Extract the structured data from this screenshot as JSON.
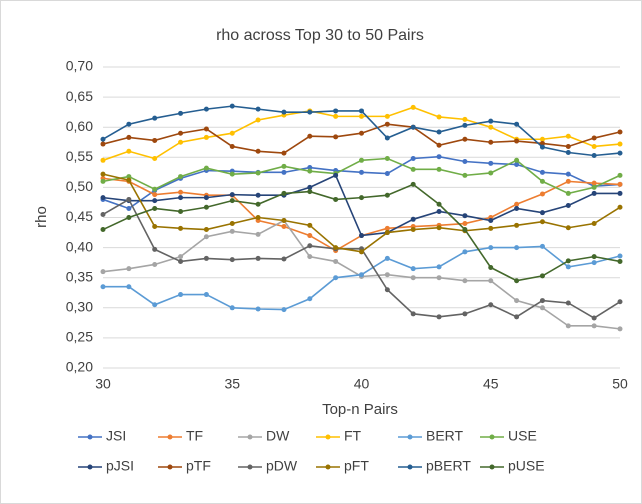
{
  "chart_data": {
    "type": "line",
    "title": "rho across Top 30 to 50 Pairs",
    "x_label": "Top-n Pairs",
    "y_label": "rho",
    "x": [
      30,
      31,
      32,
      33,
      34,
      35,
      36,
      37,
      38,
      39,
      40,
      41,
      42,
      43,
      44,
      45,
      46,
      47,
      48,
      49,
      50
    ],
    "xlim": [
      30,
      50
    ],
    "xticks": [
      30,
      35,
      40,
      45,
      50
    ],
    "ylim": [
      0.2,
      0.7
    ],
    "yticks": [
      {
        "value": 0.2,
        "label": "0,20"
      },
      {
        "value": 0.25,
        "label": "0,25"
      },
      {
        "value": 0.3,
        "label": "0,30"
      },
      {
        "value": 0.35,
        "label": "0,35"
      },
      {
        "value": 0.4,
        "label": "0,40"
      },
      {
        "value": 0.45,
        "label": "0,45"
      },
      {
        "value": 0.5,
        "label": "0,50"
      },
      {
        "value": 0.55,
        "label": "0,55"
      },
      {
        "value": 0.6,
        "label": "0,60"
      },
      {
        "value": 0.65,
        "label": "0,65"
      },
      {
        "value": 0.7,
        "label": "0,70"
      }
    ],
    "grid": true,
    "legend": "bottom",
    "series": [
      {
        "name": "JSI",
        "color": "#4472c4",
        "values": [
          0.48,
          0.465,
          0.495,
          0.515,
          0.528,
          0.527,
          0.525,
          0.525,
          0.533,
          0.528,
          0.525,
          0.523,
          0.548,
          0.551,
          0.543,
          0.54,
          0.538,
          0.525,
          0.522,
          0.502,
          0.505
        ]
      },
      {
        "name": "TF",
        "color": "#ed7d31",
        "values": [
          0.515,
          0.51,
          0.488,
          0.492,
          0.487,
          0.487,
          0.445,
          0.435,
          0.42,
          0.395,
          0.42,
          0.432,
          0.435,
          0.437,
          0.44,
          0.45,
          0.472,
          0.489,
          0.51,
          0.507,
          0.505
        ]
      },
      {
        "name": "DW",
        "color": "#a5a5a5",
        "values": [
          0.36,
          0.365,
          0.372,
          0.385,
          0.418,
          0.427,
          0.422,
          0.445,
          0.385,
          0.377,
          0.352,
          0.355,
          0.35,
          0.35,
          0.345,
          0.345,
          0.312,
          0.3,
          0.27,
          0.27,
          0.265
        ]
      },
      {
        "name": "FT",
        "color": "#ffc000",
        "values": [
          0.545,
          0.56,
          0.548,
          0.575,
          0.583,
          0.59,
          0.612,
          0.62,
          0.627,
          0.618,
          0.618,
          0.618,
          0.633,
          0.617,
          0.613,
          0.6,
          0.58,
          0.58,
          0.585,
          0.568,
          0.572
        ]
      },
      {
        "name": "BERT",
        "color": "#5b9bd5",
        "values": [
          0.335,
          0.335,
          0.305,
          0.322,
          0.322,
          0.3,
          0.298,
          0.297,
          0.315,
          0.35,
          0.355,
          0.382,
          0.365,
          0.368,
          0.393,
          0.4,
          0.4,
          0.402,
          0.368,
          0.375,
          0.386
        ]
      },
      {
        "name": "USE",
        "color": "#70ad47",
        "values": [
          0.51,
          0.518,
          0.497,
          0.518,
          0.532,
          0.522,
          0.524,
          0.535,
          0.527,
          0.523,
          0.545,
          0.548,
          0.53,
          0.53,
          0.52,
          0.524,
          0.545,
          0.51,
          0.49,
          0.5,
          0.52
        ]
      },
      {
        "name": "pJSI",
        "color": "#264478",
        "values": [
          0.483,
          0.478,
          0.478,
          0.483,
          0.483,
          0.488,
          0.487,
          0.487,
          0.5,
          0.52,
          0.42,
          0.425,
          0.447,
          0.46,
          0.453,
          0.445,
          0.465,
          0.458,
          0.47,
          0.49,
          0.49
        ]
      },
      {
        "name": "pTF",
        "color": "#9e480e",
        "values": [
          0.572,
          0.583,
          0.578,
          0.59,
          0.597,
          0.568,
          0.56,
          0.557,
          0.585,
          0.584,
          0.59,
          0.605,
          0.6,
          0.57,
          0.58,
          0.575,
          0.577,
          0.573,
          0.568,
          0.582,
          0.592
        ]
      },
      {
        "name": "pDW",
        "color": "#636363",
        "values": [
          0.455,
          0.48,
          0.397,
          0.377,
          0.382,
          0.38,
          0.382,
          0.381,
          0.403,
          0.398,
          0.398,
          0.33,
          0.29,
          0.285,
          0.29,
          0.305,
          0.285,
          0.312,
          0.308,
          0.283,
          0.31
        ]
      },
      {
        "name": "pFT",
        "color": "#997300",
        "values": [
          0.522,
          0.512,
          0.435,
          0.432,
          0.43,
          0.44,
          0.45,
          0.445,
          0.437,
          0.4,
          0.393,
          0.425,
          0.43,
          0.433,
          0.428,
          0.432,
          0.437,
          0.443,
          0.433,
          0.44,
          0.467
        ]
      },
      {
        "name": "pBERT",
        "color": "#255e91",
        "values": [
          0.58,
          0.605,
          0.615,
          0.623,
          0.63,
          0.635,
          0.63,
          0.625,
          0.625,
          0.627,
          0.627,
          0.582,
          0.6,
          0.592,
          0.603,
          0.61,
          0.605,
          0.567,
          0.558,
          0.553,
          0.557
        ]
      },
      {
        "name": "pUSE",
        "color": "#43682b",
        "values": [
          0.43,
          0.45,
          0.465,
          0.46,
          0.467,
          0.478,
          0.472,
          0.49,
          0.493,
          0.48,
          0.483,
          0.487,
          0.505,
          0.472,
          0.43,
          0.367,
          0.345,
          0.353,
          0.378,
          0.385,
          0.377
        ]
      }
    ]
  }
}
